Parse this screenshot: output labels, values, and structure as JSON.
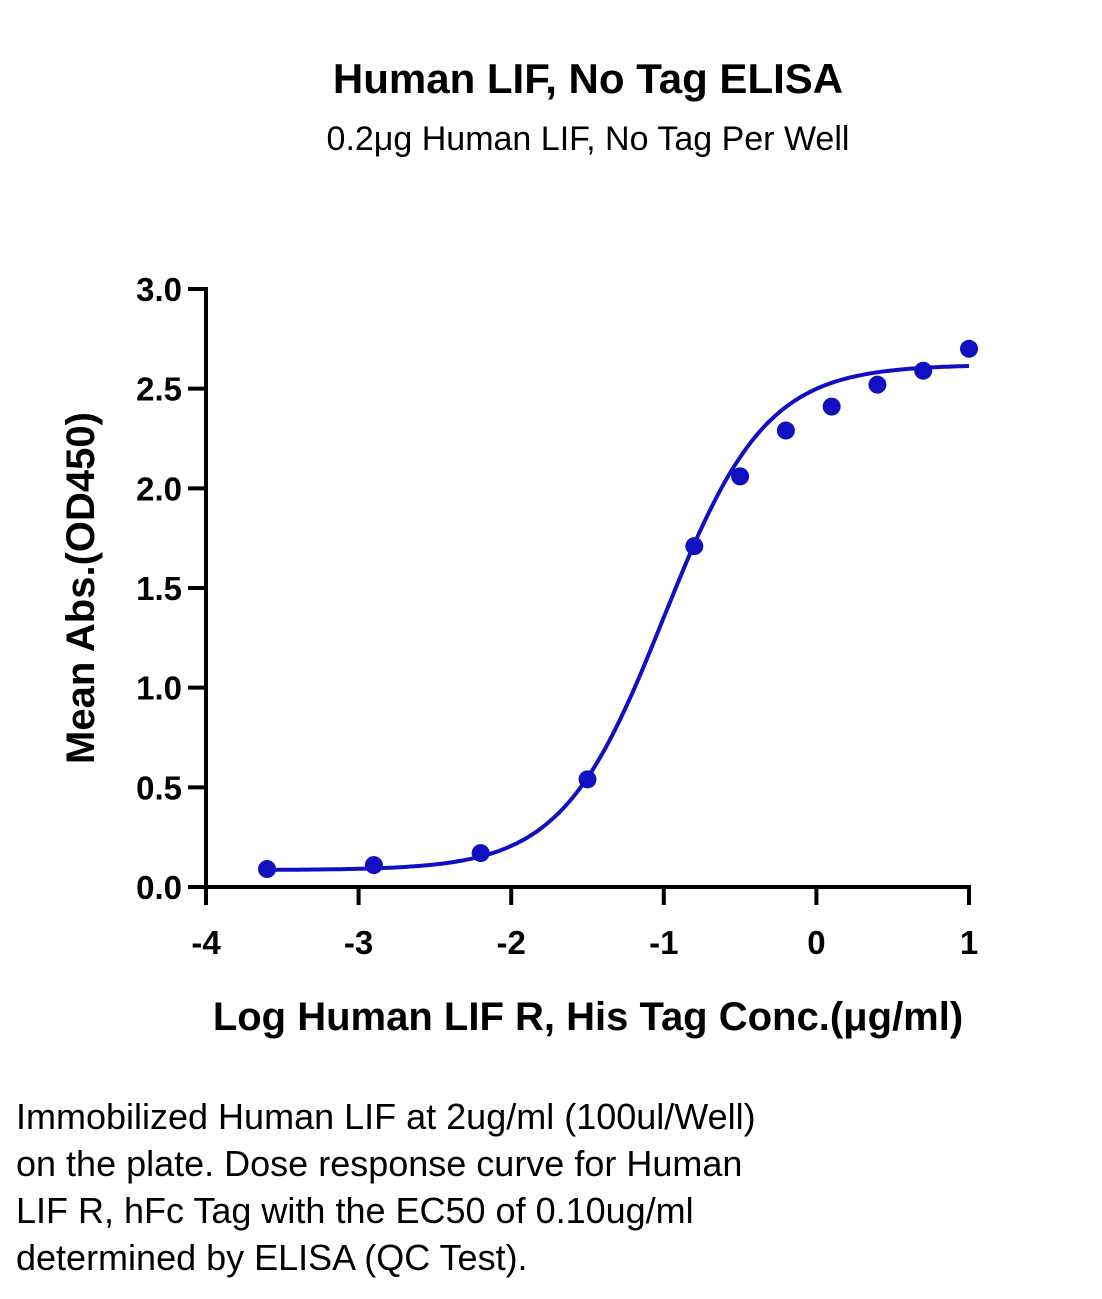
{
  "chart_data": {
    "type": "scatter",
    "title": "Human LIF, No Tag ELISA",
    "subtitle": "0.2μg Human LIF, No Tag Per Well",
    "xlabel": "Log Human LIF R, His Tag Conc.(μg/ml)",
    "ylabel": "Mean Abs.(OD450)",
    "xlim": [
      -4,
      1
    ],
    "ylim": [
      0,
      3.0
    ],
    "xticks": [
      "-4",
      "-3",
      "-2",
      "-1",
      "0",
      "1"
    ],
    "xtick_values": [
      -4,
      -3,
      -2,
      -1,
      0,
      1
    ],
    "yticks": [
      "0.0",
      "0.5",
      "1.0",
      "1.5",
      "2.0",
      "2.5",
      "3.0"
    ],
    "ytick_values": [
      0,
      0.5,
      1.0,
      1.5,
      2.0,
      2.5,
      3.0
    ],
    "series": [
      {
        "color": "#1010c0",
        "x": [
          -3.6,
          -2.9,
          -2.2,
          -1.5,
          -0.8,
          -0.5,
          -0.2,
          0.1,
          0.4,
          0.7,
          1.0
        ],
        "y": [
          0.09,
          0.11,
          0.17,
          0.54,
          1.71,
          2.06,
          2.29,
          2.41,
          2.52,
          2.59,
          2.7
        ]
      }
    ],
    "fit": {
      "model": "4PL",
      "bottom": 0.085,
      "top": 2.62,
      "log_ec50": -1.0,
      "hill": 1.3,
      "color": "#1010c0"
    }
  },
  "caption": "Immobilized Human LIF at 2ug/ml (100ul/Well) on the plate. Dose response curve for Human LIF R, hFc Tag with the EC50 of 0.10ug/ml determined by ELISA (QC Test).",
  "caption_lines": [
    "Immobilized Human LIF at 2ug/ml (100ul/Well)",
    "on the plate. Dose response curve for Human",
    "LIF R, hFc Tag with the EC50 of 0.10ug/ml",
    "determined by ELISA (QC Test)."
  ]
}
